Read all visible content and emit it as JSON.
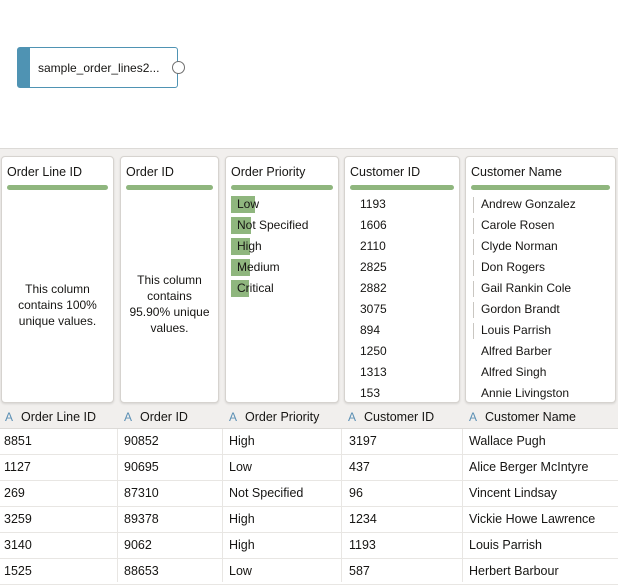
{
  "canvas": {
    "node_label": "sample_order_lines2..."
  },
  "profile": {
    "columns": [
      {
        "title": "Order Line ID",
        "note": "This column contains 100% unique values."
      },
      {
        "title": "Order ID",
        "note": "This column contains 95.90% unique values."
      },
      {
        "title": "Order Priority",
        "values": [
          {
            "label": "Low",
            "fraction": 1.0
          },
          {
            "label": "Not Specified",
            "fraction": 0.82
          },
          {
            "label": "High",
            "fraction": 0.79
          },
          {
            "label": "Medium",
            "fraction": 0.79
          },
          {
            "label": "Critical",
            "fraction": 0.77
          }
        ]
      },
      {
        "title": "Customer ID",
        "values": [
          "1193",
          "1606",
          "2110",
          "2825",
          "2882",
          "3075",
          "894",
          "1250",
          "1313",
          "153"
        ]
      },
      {
        "title": "Customer Name",
        "values": [
          "Andrew Gonzalez",
          "Carole Rosen",
          "Clyde Norman",
          "Don Rogers",
          "Gail Rankin Cole",
          "Gordon Brandt",
          "Louis Parrish",
          "Alfred Barber",
          "Alfred Singh",
          "Annie Livingston"
        ]
      }
    ]
  },
  "table": {
    "type_glyph": "A",
    "headers": [
      "Order Line ID",
      "Order ID",
      "Order Priority",
      "Customer ID",
      "Customer Name"
    ],
    "rows": [
      [
        "8851",
        "90852",
        "High",
        "3197",
        "Wallace Pugh"
      ],
      [
        "1127",
        "90695",
        "Low",
        "437",
        "Alice Berger McIntyre"
      ],
      [
        "269",
        "87310",
        "Not Specified",
        "96",
        "Vincent Lindsay"
      ],
      [
        "3259",
        "89378",
        "High",
        "1234",
        "Vickie Howe Lawrence"
      ],
      [
        "3140",
        "9062",
        "High",
        "1193",
        "Louis Parrish"
      ],
      [
        "1525",
        "88653",
        "Low",
        "587",
        "Herbert Barbour"
      ]
    ]
  },
  "colors": {
    "accent": "#4f93b3",
    "bar": "#8fb67e"
  }
}
